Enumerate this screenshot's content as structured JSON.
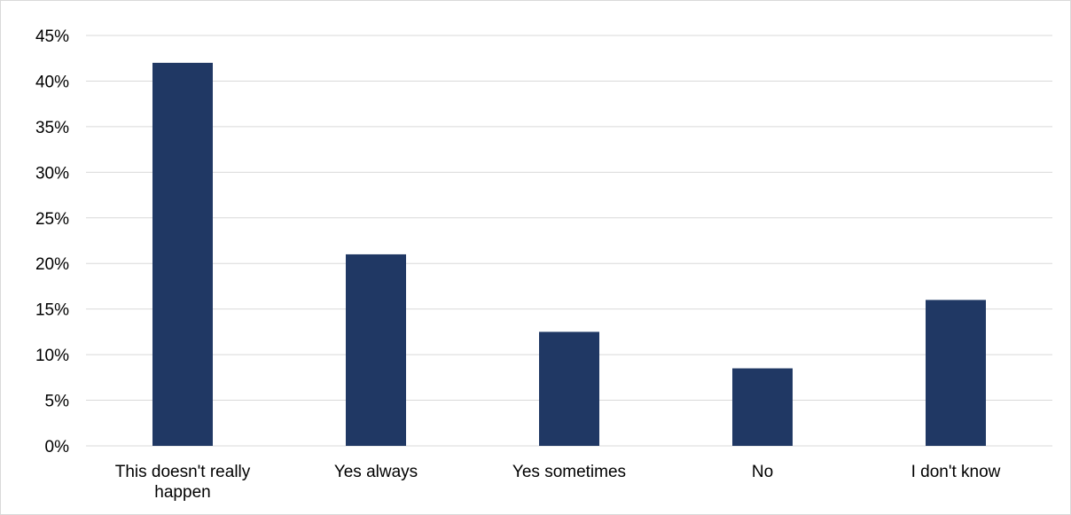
{
  "chart_data": {
    "type": "bar",
    "categories": [
      [
        "This doesn't really",
        "happen"
      ],
      [
        "Yes always"
      ],
      [
        "Yes sometimes"
      ],
      [
        "No"
      ],
      [
        "I don't know"
      ]
    ],
    "values": [
      42,
      21,
      12.5,
      8.5,
      16
    ],
    "ylim": [
      0,
      45
    ],
    "yticks": [
      0,
      5,
      10,
      15,
      20,
      25,
      30,
      35,
      40,
      45
    ],
    "ytick_labels": [
      "0%",
      "5%",
      "10%",
      "15%",
      "20%",
      "25%",
      "30%",
      "35%",
      "40%",
      "45%"
    ],
    "grid": true,
    "legend": "none",
    "colors": {
      "bar": "#203864",
      "grid": "#d9d9d9",
      "axis": "#d9d9d9"
    }
  }
}
